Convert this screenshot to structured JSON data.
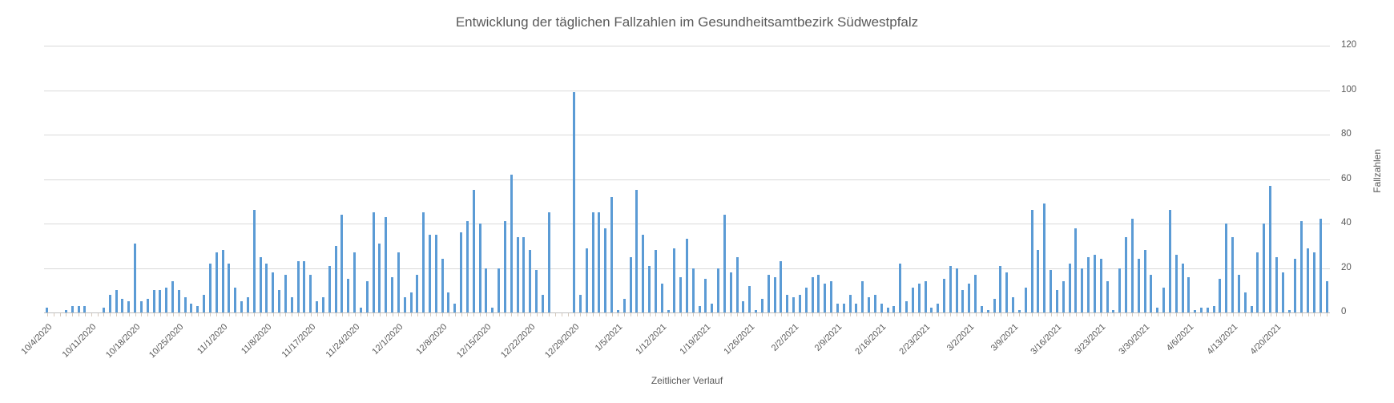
{
  "chart_data": {
    "type": "bar",
    "title": "Entwicklung der täglichen Fallzahlen im Gesundheitsamtbezirk Südwestpfalz",
    "xlabel": "Zeitlicher Verlauf",
    "ylabel": "Fallzahlen",
    "ylim": [
      0,
      120
    ],
    "yticks": [
      0,
      20,
      40,
      60,
      80,
      100,
      120
    ],
    "grid": true,
    "legend": "none",
    "y_axis_side": "right",
    "bar_color": "#5b9bd5",
    "gridline_color": "#d9d9d9",
    "axis_color": "#bfbfbf",
    "text_color": "#595959",
    "xtick_every": 7,
    "xtick_labels": [
      "10/4/2020",
      "10/11/2020",
      "10/18/2020",
      "10/25/2020",
      "11/1/2020",
      "11/8/2020",
      "11/17/2020",
      "11/24/2020",
      "12/1/2020",
      "12/8/2020",
      "12/15/2020",
      "12/22/2020",
      "12/29/2020",
      "1/5/2021",
      "1/12/2021",
      "1/19/2021",
      "1/26/2021",
      "2/2/2021",
      "2/9/2021",
      "2/16/2021",
      "2/23/2021",
      "3/2/2021",
      "3/9/2021",
      "3/16/2021",
      "3/23/2021",
      "3/30/2021",
      "4/6/2021",
      "4/13/2021",
      "4/20/2021"
    ],
    "values": [
      2,
      0,
      0,
      1,
      3,
      3,
      3,
      0,
      0,
      2,
      8,
      10,
      6,
      5,
      31,
      5,
      6,
      10,
      10,
      11,
      14,
      10,
      7,
      4,
      3,
      8,
      22,
      27,
      28,
      22,
      11,
      5,
      7,
      46,
      25,
      22,
      18,
      10,
      17,
      7,
      23,
      23,
      17,
      5,
      7,
      21,
      30,
      44,
      15,
      27,
      2,
      14,
      45,
      31,
      43,
      16,
      27,
      7,
      9,
      17,
      45,
      35,
      35,
      24,
      9,
      4,
      36,
      41,
      55,
      40,
      20,
      2,
      20,
      41,
      62,
      34,
      34,
      28,
      19,
      8,
      45,
      0,
      0,
      0,
      99,
      8,
      29,
      45,
      45,
      38,
      52,
      1,
      6,
      25,
      55,
      35,
      21,
      28,
      13,
      1,
      29,
      16,
      33,
      20,
      3,
      15,
      4,
      20,
      44,
      18,
      25,
      5,
      12,
      1,
      6,
      17,
      16,
      23,
      8,
      7,
      8,
      11,
      16,
      17,
      13,
      14,
      4,
      4,
      8,
      4,
      14,
      7,
      8,
      4,
      2,
      3,
      22,
      5,
      11,
      13,
      14,
      2,
      4,
      15,
      21,
      20,
      10,
      13,
      17,
      3,
      1,
      6,
      21,
      18,
      7,
      1,
      11,
      46,
      28,
      49,
      19,
      10,
      14,
      22,
      38,
      20,
      25,
      26,
      24,
      14,
      1,
      20,
      34,
      42,
      24,
      28,
      17,
      2,
      11,
      46,
      26,
      22,
      16,
      1,
      2,
      2,
      3,
      15,
      40,
      34,
      17,
      9,
      3,
      27,
      40,
      57,
      25,
      18,
      1,
      24,
      41,
      29,
      27,
      42,
      14
    ]
  }
}
